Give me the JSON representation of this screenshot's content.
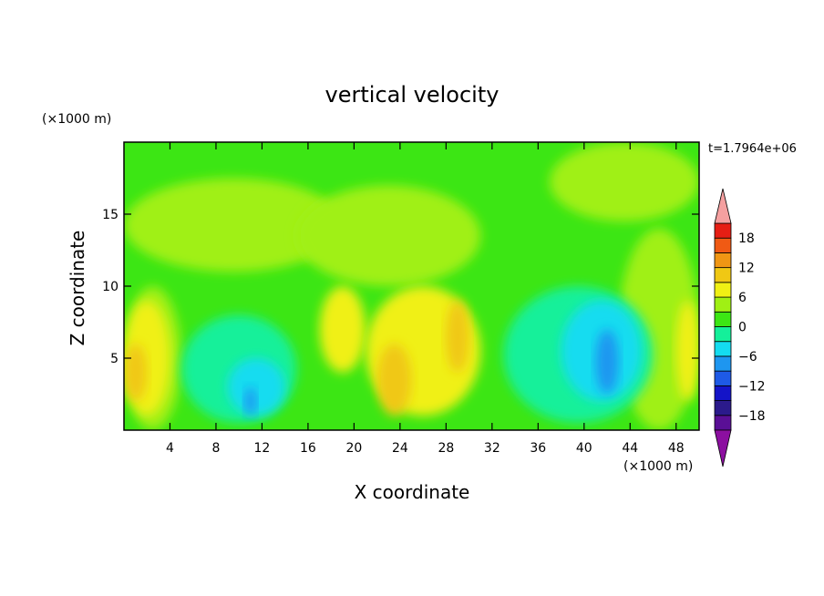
{
  "chart_data": {
    "type": "heatmap",
    "title": "vertical velocity",
    "xlabel": "X coordinate",
    "ylabel": "Z coordinate",
    "x_unit": "(×1000 m)",
    "y_unit": "(×1000 m)",
    "time_label": "t=1.7964e+06",
    "xlim": [
      0,
      50
    ],
    "ylim": [
      0,
      20
    ],
    "x_ticks": [
      4,
      8,
      12,
      16,
      20,
      24,
      28,
      32,
      36,
      40,
      44,
      48
    ],
    "y_ticks": [
      5,
      10,
      15
    ],
    "colorbar": {
      "levels": [
        -21,
        -18,
        -15,
        -12,
        -9,
        -6,
        -3,
        0,
        3,
        6,
        9,
        12,
        15,
        18,
        21
      ],
      "tick_labels": [
        -18,
        -12,
        -6,
        0,
        6,
        12,
        18
      ],
      "colors": [
        "#5a0f96",
        "#2b1a8c",
        "#1414c8",
        "#1e5ae6",
        "#1e96f0",
        "#14dcf0",
        "#14f09a",
        "#3ce614",
        "#a0f014",
        "#f0f014",
        "#f0c814",
        "#f09614",
        "#f05a14",
        "#e61e14"
      ],
      "under_color": "#8c0fa0",
      "over_color": "#f5a0a0"
    },
    "regions": [
      {
        "x": [
          0,
          50
        ],
        "z": [
          0,
          20
        ],
        "value": 1.5
      },
      {
        "x": [
          0,
          19
        ],
        "z": [
          11,
          17.5
        ],
        "value": 4
      },
      {
        "x": [
          15,
          31
        ],
        "z": [
          10,
          17
        ],
        "value": 4
      },
      {
        "x": [
          37,
          50
        ],
        "z": [
          14.5,
          20
        ],
        "value": 4
      },
      {
        "x": [
          43,
          50
        ],
        "z": [
          0,
          14
        ],
        "value": 4
      },
      {
        "x": [
          0,
          5
        ],
        "z": [
          0,
          10
        ],
        "value": 4
      },
      {
        "x": [
          0,
          4
        ],
        "z": [
          1,
          9
        ],
        "value": 7
      },
      {
        "x": [
          0,
          2
        ],
        "z": [
          2,
          6
        ],
        "value": 10
      },
      {
        "x": [
          48,
          50
        ],
        "z": [
          2,
          9
        ],
        "value": 7
      },
      {
        "x": [
          17,
          21
        ],
        "z": [
          4,
          10
        ],
        "value": 7
      },
      {
        "x": [
          21,
          31
        ],
        "z": [
          1,
          10
        ],
        "value": 7
      },
      {
        "x": [
          22,
          25
        ],
        "z": [
          1,
          6
        ],
        "value": 10
      },
      {
        "x": [
          28,
          30
        ],
        "z": [
          4,
          9
        ],
        "value": 10
      },
      {
        "x": [
          5,
          15
        ],
        "z": [
          0.5,
          8
        ],
        "value": -1
      },
      {
        "x": [
          9,
          14
        ],
        "z": [
          1,
          5
        ],
        "value": -4
      },
      {
        "x": [
          10.5,
          11.5
        ],
        "z": [
          1,
          3
        ],
        "value": -8
      },
      {
        "x": [
          33,
          46
        ],
        "z": [
          0.5,
          10
        ],
        "value": -1
      },
      {
        "x": [
          38,
          45
        ],
        "z": [
          2,
          9
        ],
        "value": -4
      },
      {
        "x": [
          41,
          43
        ],
        "z": [
          2.5,
          7
        ],
        "value": -8
      }
    ]
  }
}
